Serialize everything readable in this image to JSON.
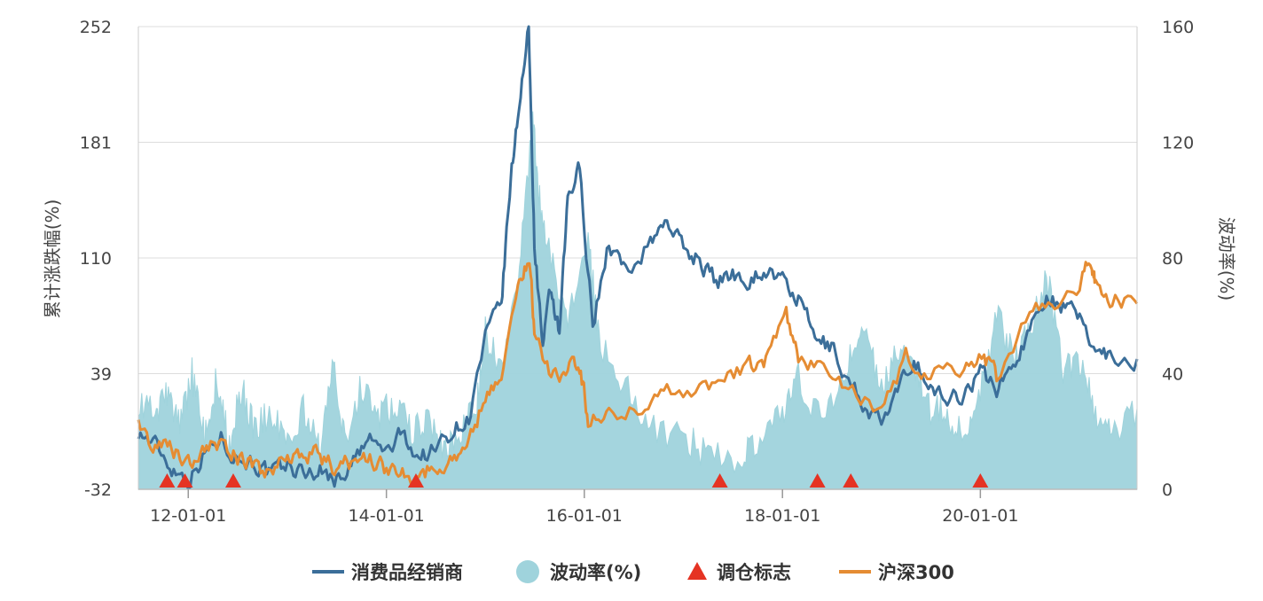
{
  "chart_data": {
    "type": "line",
    "x_ticks": [
      "12-01-01",
      "14-01-01",
      "16-01-01",
      "18-01-01",
      "20-01-01"
    ],
    "x_range": [
      "2011-07-01",
      "2021-08-01"
    ],
    "y_left": {
      "label": "累计涨跌幅(%)",
      "ticks": [
        -32,
        39,
        110,
        181,
        252
      ],
      "range": [
        -32,
        252
      ]
    },
    "y_right": {
      "label": "波动率(%)",
      "ticks": [
        0,
        40,
        80,
        120,
        160
      ],
      "range": [
        0,
        160
      ]
    },
    "legend": {
      "position": "bottom-center"
    },
    "grid": true,
    "series": [
      {
        "name": "消费品经销商",
        "type": "line",
        "axis": "left",
        "color": "#3b6e99",
        "points": [
          [
            "2011-07-01",
            4
          ],
          [
            "2011-09-01",
            -5
          ],
          [
            "2011-11-01",
            -18
          ],
          [
            "2012-01-01",
            -25
          ],
          [
            "2012-03-01",
            -10
          ],
          [
            "2012-05-01",
            0
          ],
          [
            "2012-07-01",
            -12
          ],
          [
            "2012-09-01",
            -15
          ],
          [
            "2012-11-01",
            -24
          ],
          [
            "2013-01-01",
            -18
          ],
          [
            "2013-03-01",
            -22
          ],
          [
            "2013-05-01",
            -20
          ],
          [
            "2013-07-01",
            -26
          ],
          [
            "2013-09-01",
            -15
          ],
          [
            "2013-11-01",
            -2
          ],
          [
            "2014-01-01",
            -10
          ],
          [
            "2014-03-01",
            2
          ],
          [
            "2014-05-01",
            -12
          ],
          [
            "2014-07-01",
            -8
          ],
          [
            "2014-09-01",
            5
          ],
          [
            "2014-11-01",
            12
          ],
          [
            "2015-01-01",
            60
          ],
          [
            "2015-03-01",
            80
          ],
          [
            "2015-04-01",
            150
          ],
          [
            "2015-05-01",
            200
          ],
          [
            "2015-06-10",
            250
          ],
          [
            "2015-07-01",
            120
          ],
          [
            "2015-08-01",
            55
          ],
          [
            "2015-09-01",
            90
          ],
          [
            "2015-10-01",
            60
          ],
          [
            "2015-11-01",
            145
          ],
          [
            "2015-12-15",
            165
          ],
          [
            "2016-02-01",
            70
          ],
          [
            "2016-04-01",
            120
          ],
          [
            "2016-06-01",
            100
          ],
          [
            "2016-09-01",
            120
          ],
          [
            "2016-11-01",
            135
          ],
          [
            "2017-01-01",
            115
          ],
          [
            "2017-03-01",
            110
          ],
          [
            "2017-05-01",
            95
          ],
          [
            "2017-07-01",
            100
          ],
          [
            "2017-09-01",
            98
          ],
          [
            "2017-11-01",
            103
          ],
          [
            "2018-01-01",
            95
          ],
          [
            "2018-03-01",
            85
          ],
          [
            "2018-05-01",
            60
          ],
          [
            "2018-07-01",
            55
          ],
          [
            "2018-09-01",
            35
          ],
          [
            "2018-11-01",
            20
          ],
          [
            "2019-01-01",
            8
          ],
          [
            "2019-03-01",
            25
          ],
          [
            "2019-05-01",
            50
          ],
          [
            "2019-07-01",
            30
          ],
          [
            "2019-09-01",
            22
          ],
          [
            "2019-11-01",
            28
          ],
          [
            "2020-01-01",
            40
          ],
          [
            "2020-03-01",
            30
          ],
          [
            "2020-05-01",
            45
          ],
          [
            "2020-07-01",
            65
          ],
          [
            "2020-09-01",
            90
          ],
          [
            "2020-11-01",
            80
          ],
          [
            "2021-01-01",
            72
          ],
          [
            "2021-03-01",
            55
          ],
          [
            "2021-05-01",
            50
          ],
          [
            "2021-08-01",
            48
          ]
        ]
      },
      {
        "name": "沪深300",
        "type": "line",
        "axis": "left",
        "color": "#e58c33",
        "points": [
          [
            "2011-07-01",
            6
          ],
          [
            "2011-09-01",
            -5
          ],
          [
            "2011-11-01",
            -8
          ],
          [
            "2012-01-01",
            -15
          ],
          [
            "2012-03-01",
            -6
          ],
          [
            "2012-05-01",
            -5
          ],
          [
            "2012-07-01",
            -12
          ],
          [
            "2012-09-01",
            -18
          ],
          [
            "2012-11-01",
            -22
          ],
          [
            "2013-01-01",
            -8
          ],
          [
            "2013-03-01",
            -12
          ],
          [
            "2013-05-01",
            -10
          ],
          [
            "2013-07-01",
            -22
          ],
          [
            "2013-09-01",
            -14
          ],
          [
            "2013-11-01",
            -12
          ],
          [
            "2014-01-01",
            -20
          ],
          [
            "2014-03-01",
            -20
          ],
          [
            "2014-05-01",
            -23
          ],
          [
            "2014-07-01",
            -19
          ],
          [
            "2014-09-01",
            -12
          ],
          [
            "2014-11-01",
            -4
          ],
          [
            "2015-01-01",
            25
          ],
          [
            "2015-03-01",
            40
          ],
          [
            "2015-05-01",
            90
          ],
          [
            "2015-06-10",
            112
          ],
          [
            "2015-07-01",
            68
          ],
          [
            "2015-09-01",
            35
          ],
          [
            "2015-11-01",
            42
          ],
          [
            "2015-12-15",
            45
          ],
          [
            "2016-01-15",
            10
          ],
          [
            "2016-04-01",
            15
          ],
          [
            "2016-08-01",
            18
          ],
          [
            "2016-11-01",
            28
          ],
          [
            "2017-03-01",
            30
          ],
          [
            "2017-06-01",
            35
          ],
          [
            "2017-09-01",
            42
          ],
          [
            "2017-11-01",
            48
          ],
          [
            "2018-01-15",
            72
          ],
          [
            "2018-03-01",
            50
          ],
          [
            "2018-06-01",
            42
          ],
          [
            "2018-09-01",
            28
          ],
          [
            "2019-01-01",
            15
          ],
          [
            "2019-04-01",
            48
          ],
          [
            "2019-07-01",
            40
          ],
          [
            "2019-11-01",
            42
          ],
          [
            "2020-01-15",
            51
          ],
          [
            "2020-03-01",
            35
          ],
          [
            "2020-07-01",
            80
          ],
          [
            "2020-10-01",
            75
          ],
          [
            "2021-01-01",
            95
          ],
          [
            "2021-02-15",
            108
          ],
          [
            "2021-03-01",
            95
          ],
          [
            "2021-05-01",
            85
          ],
          [
            "2021-08-01",
            82
          ]
        ]
      },
      {
        "name": "波动率(%)",
        "type": "area",
        "axis": "right",
        "color": "#9fd3dc",
        "points": [
          [
            "2011-07-01",
            30
          ],
          [
            "2011-09-01",
            25
          ],
          [
            "2011-10-15",
            33
          ],
          [
            "2011-12-01",
            22
          ],
          [
            "2012-01-15",
            40
          ],
          [
            "2012-03-01",
            18
          ],
          [
            "2012-04-15",
            38
          ],
          [
            "2012-06-01",
            15
          ],
          [
            "2012-07-15",
            35
          ],
          [
            "2012-09-01",
            20
          ],
          [
            "2012-11-01",
            28
          ],
          [
            "2013-01-01",
            15
          ],
          [
            "2013-03-01",
            28
          ],
          [
            "2013-05-01",
            12
          ],
          [
            "2013-06-20",
            42
          ],
          [
            "2013-08-01",
            18
          ],
          [
            "2013-10-01",
            35
          ],
          [
            "2013-12-01",
            25
          ],
          [
            "2014-02-01",
            30
          ],
          [
            "2014-04-01",
            20
          ],
          [
            "2014-06-01",
            25
          ],
          [
            "2014-08-01",
            14
          ],
          [
            "2014-10-01",
            20
          ],
          [
            "2014-12-01",
            30
          ],
          [
            "2015-01-01",
            55
          ],
          [
            "2015-03-01",
            40
          ],
          [
            "2015-05-01",
            70
          ],
          [
            "2015-06-25",
            130
          ],
          [
            "2015-07-20",
            100
          ],
          [
            "2015-09-01",
            80
          ],
          [
            "2015-11-01",
            60
          ],
          [
            "2016-01-15",
            85
          ],
          [
            "2016-03-01",
            50
          ],
          [
            "2016-06-01",
            35
          ],
          [
            "2016-09-01",
            22
          ],
          [
            "2017-01-01",
            18
          ],
          [
            "2017-04-01",
            12
          ],
          [
            "2017-08-01",
            10
          ],
          [
            "2017-10-01",
            15
          ],
          [
            "2018-01-01",
            25
          ],
          [
            "2018-03-01",
            38
          ],
          [
            "2018-06-01",
            22
          ],
          [
            "2018-09-01",
            45
          ],
          [
            "2018-11-01",
            55
          ],
          [
            "2019-01-01",
            35
          ],
          [
            "2019-03-01",
            50
          ],
          [
            "2019-05-01",
            45
          ],
          [
            "2019-07-01",
            28
          ],
          [
            "2019-09-01",
            25
          ],
          [
            "2019-11-01",
            20
          ],
          [
            "2020-01-01",
            35
          ],
          [
            "2020-03-01",
            60
          ],
          [
            "2020-05-01",
            45
          ],
          [
            "2020-07-01",
            55
          ],
          [
            "2020-09-01",
            75
          ],
          [
            "2020-11-01",
            40
          ],
          [
            "2021-01-01",
            45
          ],
          [
            "2021-03-01",
            25
          ],
          [
            "2021-05-01",
            18
          ],
          [
            "2021-08-01",
            28
          ]
        ]
      },
      {
        "name": "调仓标志",
        "type": "marker",
        "marker": "triangle",
        "color": "#e53323",
        "x": [
          "2011-10-15",
          "2011-12-20",
          "2012-06-15",
          "2014-04-20",
          "2017-05-15",
          "2018-05-10",
          "2018-09-10",
          "2020-01-01"
        ]
      }
    ]
  }
}
